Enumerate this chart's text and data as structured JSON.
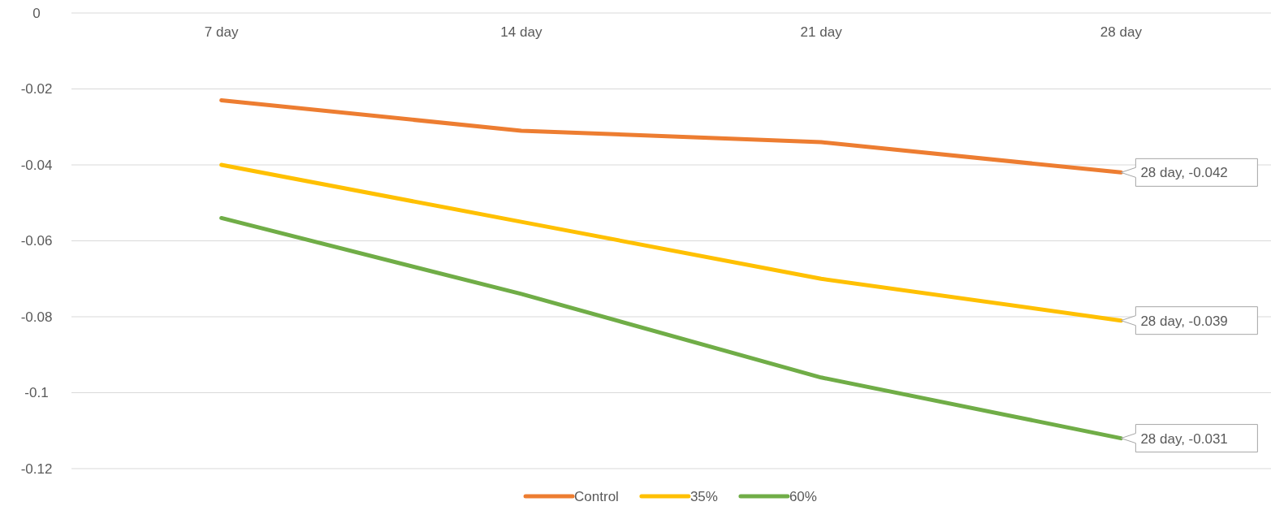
{
  "chart_data": {
    "type": "line",
    "categories": [
      "7 day",
      "14 day",
      "21 day",
      "28 day"
    ],
    "series": [
      {
        "name": "Control",
        "color": "#ed7d31",
        "values": [
          -0.023,
          -0.031,
          -0.034,
          -0.042
        ]
      },
      {
        "name": "35%",
        "color": "#ffc000",
        "values": [
          -0.04,
          -0.055,
          -0.07,
          -0.081
        ]
      },
      {
        "name": "60%",
        "color": "#70ad47",
        "values": [
          -0.054,
          -0.074,
          -0.096,
          -0.112
        ]
      }
    ],
    "ylim": [
      -0.12,
      0
    ],
    "yticks": [
      0,
      -0.02,
      -0.04,
      -0.06,
      -0.08,
      -0.1,
      -0.12
    ],
    "grid": "y",
    "legend": "bottom",
    "marker": "none",
    "line_style": "solid",
    "annotations": [
      {
        "text": "28 day, -0.042",
        "x": "28 day",
        "y": -0.042
      },
      {
        "text": "28 day, -0.039",
        "x": "28 day",
        "y": -0.081
      },
      {
        "text": "28 day, -0.031",
        "x": "28 day",
        "y": -0.112
      }
    ]
  }
}
